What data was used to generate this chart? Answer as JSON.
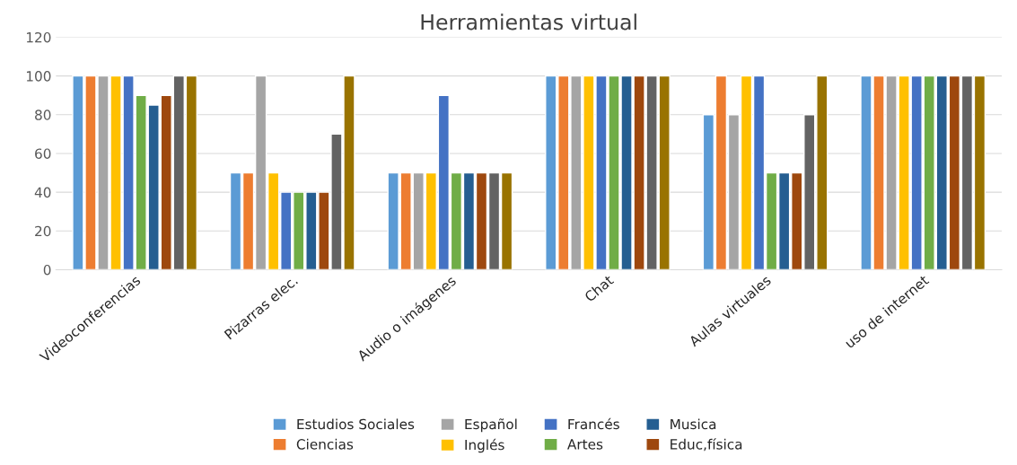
{
  "chart_data": {
    "type": "bar",
    "title": "Herramientas virtual",
    "categories": [
      "Videoconferencias",
      "Pizarras elec.",
      "Audio o imágenes",
      "Chat",
      "Aulas virtuales",
      "uso de internet"
    ],
    "series": [
      {
        "name": "Estudios Sociales",
        "color": "#5b9bd5",
        "values": [
          100,
          50,
          50,
          100,
          80,
          100
        ]
      },
      {
        "name": "Ciencias",
        "color": "#ed7d31",
        "values": [
          100,
          50,
          50,
          100,
          100,
          100
        ]
      },
      {
        "name": "Español",
        "color": "#a5a5a5",
        "values": [
          100,
          100,
          50,
          100,
          80,
          100
        ]
      },
      {
        "name": "Inglés",
        "color": "#ffc000",
        "values": [
          100,
          50,
          50,
          100,
          100,
          100
        ]
      },
      {
        "name": "Francés",
        "color": "#4472c4",
        "values": [
          100,
          40,
          90,
          100,
          100,
          100
        ]
      },
      {
        "name": "Artes",
        "color": "#70ad47",
        "values": [
          90,
          40,
          50,
          100,
          50,
          100
        ]
      },
      {
        "name": "Musica",
        "color": "#255e91",
        "values": [
          85,
          40,
          50,
          100,
          50,
          100
        ]
      },
      {
        "name": "Educ,física",
        "color": "#9e480e",
        "values": [
          90,
          40,
          50,
          100,
          50,
          100
        ]
      },
      {
        "color": "#636363",
        "values": [
          100,
          70,
          50,
          100,
          80,
          100
        ]
      },
      {
        "color": "#997300",
        "values": [
          100,
          100,
          50,
          100,
          100,
          100
        ]
      }
    ],
    "ylim": [
      0,
      120
    ],
    "yticks": [
      0,
      20,
      40,
      60,
      80,
      100,
      120
    ],
    "grid": "y",
    "legend": "bottom"
  }
}
